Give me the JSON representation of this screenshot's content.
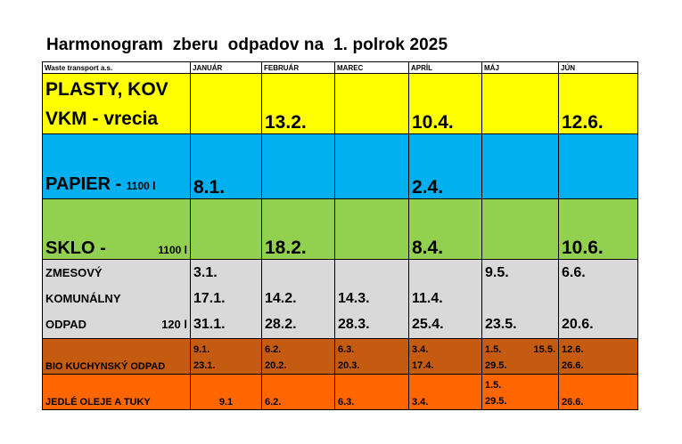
{
  "title": "Harmonogram  zberu  odpadov na  1. polrok 2025",
  "header": {
    "company": "Waste transport a.s.",
    "months": [
      "JANUÁR",
      "FEBRUÁR",
      "MAREC",
      "APRÍL",
      "MÁJ",
      "JÚN"
    ]
  },
  "rows": {
    "plasty": {
      "label_line1": "PLASTY, KOV",
      "label_line2": "VKM - vrecia",
      "dates": [
        "",
        "13.2.",
        "",
        "10.4.",
        "",
        "12.6."
      ],
      "color": "#ffff00"
    },
    "papier": {
      "label": "PAPIER - ",
      "volume": "1100 l",
      "dates": [
        "8.1.",
        "",
        "",
        "2.4.",
        "",
        ""
      ],
      "color": "#00b0f0"
    },
    "sklo": {
      "label": "SKLO - ",
      "volume": "1100 l",
      "dates": [
        "",
        "18.2.",
        "",
        "8.4.",
        "",
        "10.6."
      ],
      "color": "#92d050"
    },
    "zmesovy": {
      "label_line1": "ZMESOVÝ",
      "label_line2": "KOMUNÁLNY",
      "label_line3": "ODPAD",
      "volume": "120 l",
      "jan": [
        "3.1.",
        "17.1.",
        "31.1."
      ],
      "feb": [
        "",
        "14.2.",
        "28.2."
      ],
      "mar": [
        "",
        "14.3.",
        "28.3."
      ],
      "apr": [
        "",
        "11.4.",
        "25.4."
      ],
      "maj": [
        "9.5.",
        "",
        "23.5."
      ],
      "jun": [
        "6.6.",
        "",
        "20.6."
      ],
      "color": "#d9d9d9"
    },
    "bio": {
      "label": "BIO KUCHYNSKÝ ODPAD",
      "jan": [
        "9.1.",
        "23.1."
      ],
      "feb": [
        "6.2.",
        "20.2."
      ],
      "mar": [
        "6.3.",
        "20.3."
      ],
      "apr": [
        "3.4.",
        "17.4."
      ],
      "maj": [
        "1.5.",
        "15.5.",
        "29.5."
      ],
      "jun": [
        "12.6.",
        "26.6."
      ],
      "color": "#c55a11"
    },
    "oleje": {
      "label": "JEDLÉ OLEJE A TUKY",
      "jan": "9.1",
      "feb": "6.2.",
      "mar": "6.3.",
      "apr": "3.4.",
      "maj": [
        "1.5.",
        "29.5."
      ],
      "jun": "26.6.",
      "color": "#ff6600"
    }
  }
}
